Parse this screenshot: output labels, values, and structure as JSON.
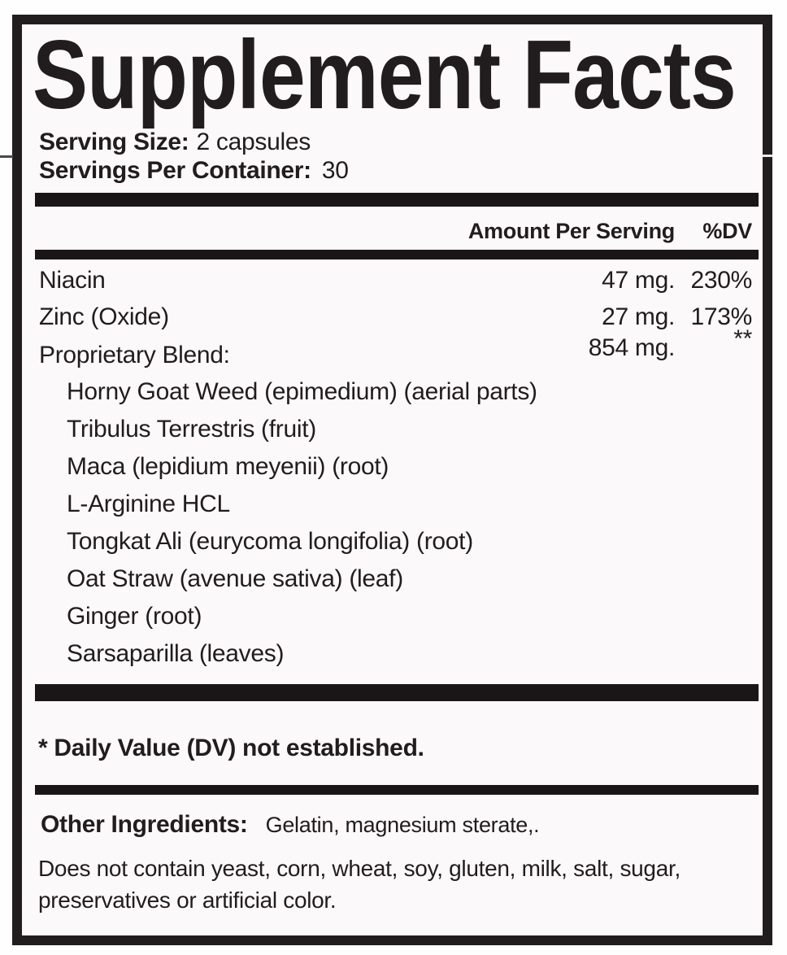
{
  "label": {
    "title": "Supplement Facts",
    "serving": {
      "size_label": "Serving Size:",
      "size_value": "2 capsules",
      "per_container_label": "Servings Per Container:",
      "per_container_value": "30"
    },
    "header": {
      "amount": "Amount Per Serving",
      "dv": "%DV"
    },
    "nutrients": [
      {
        "name": "Niacin",
        "amount": "47 mg.",
        "dv": "230%"
      },
      {
        "name": "Zinc (Oxide)",
        "amount": "27 mg.",
        "dv": "173%"
      },
      {
        "name": "Proprietary Blend:",
        "amount": "854 mg.",
        "dv": "**"
      }
    ],
    "blend_ingredients": [
      "Horny Goat Weed (epimedium) (aerial parts)",
      "Tribulus Terrestris (fruit)",
      "Maca (lepidium meyenii) (root)",
      "L-Arginine HCL",
      "Tongkat Ali (eurycoma longifolia) (root)",
      "Oat Straw (avenue sativa) (leaf)",
      "Ginger (root)",
      "Sarsaparilla (leaves)"
    ],
    "footnote": "* Daily Value (DV) not established.",
    "other_ingredients": {
      "label": "Other Ingredients:",
      "value": "Gelatin, magnesium sterate,."
    },
    "disclaimer_line1": "Does not contain yeast, corn, wheat, soy, gluten, milk, salt, sugar,",
    "disclaimer_line2": "preservatives or artificial color.",
    "colors": {
      "ink": "#211c1d",
      "bar": "#1a1516",
      "paper": "#fbf9f9"
    }
  }
}
